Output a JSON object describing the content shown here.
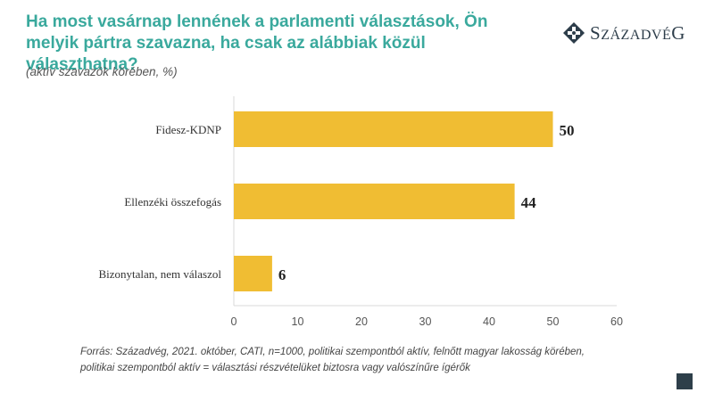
{
  "header": {
    "title": "Ha most vasárnap lennének a parlamenti választások, Ön melyik pártra szavazna, ha csak az alábbiak közül választhatna?",
    "subtitle": "(aktív szavazók körében, %)"
  },
  "logo": {
    "first": "S",
    "rest": "zázadvé",
    "last": "G"
  },
  "footer": {
    "source_line1": "Forrás: Századvég, 2021. október, CATI, n=1000, politikai szempontból aktív, felnőtt magyar lakosság körében,",
    "source_line2": "politikai szempontból aktív = választási részvételüket biztosra vagy valószínűre ígérők"
  },
  "colors": {
    "title": "#3aa99d",
    "bar": "#f0bd33",
    "axis": "#d9d9d9",
    "logo": "#2d3d4a"
  },
  "chart_data": {
    "type": "bar",
    "orientation": "horizontal",
    "categories": [
      "Fidesz-KDNP",
      "Ellenzéki összefogás",
      "Bizonytalan, nem válaszol"
    ],
    "values": [
      50,
      44,
      6
    ],
    "xlim": [
      0,
      60
    ],
    "xticks": [
      0,
      10,
      20,
      30,
      40,
      50,
      60
    ],
    "grid": false,
    "data_labels": true
  }
}
